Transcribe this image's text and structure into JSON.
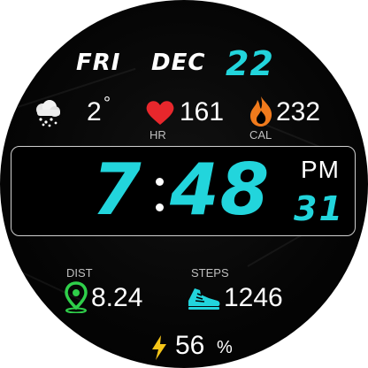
{
  "date": {
    "day": "FRI",
    "month": "DEC",
    "daynum": "22"
  },
  "weather": {
    "icon": "snow-cloud-icon",
    "temp": "2",
    "unit": "°"
  },
  "heart_rate": {
    "icon": "heart-icon",
    "value": "161",
    "label": "HR"
  },
  "calories": {
    "icon": "flame-icon",
    "value": "232",
    "label": "CAL"
  },
  "time": {
    "hour": "7",
    "minutes": "48",
    "ampm": "PM",
    "seconds": "31"
  },
  "distance": {
    "icon": "location-pin-icon",
    "label": "DIST",
    "value": "8.24"
  },
  "steps": {
    "icon": "shoe-icon",
    "label": "STEPS",
    "value": "1246"
  },
  "battery": {
    "icon": "lightning-icon",
    "value": "56",
    "unit": "%"
  },
  "colors": {
    "accent": "#22d5dc",
    "heart": "#e8272c",
    "flame": "#f07a1c",
    "pin": "#2fcf4a",
    "bolt": "#f5c518"
  }
}
